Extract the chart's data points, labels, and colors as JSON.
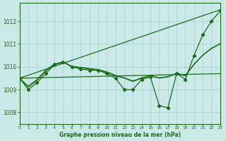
{
  "title": "Graphe pression niveau de la mer (hPa)",
  "background_color": "#cce9e9",
  "grid_color": "#aad4d4",
  "line_color": "#1a6b1a",
  "xlim": [
    0,
    23
  ],
  "ylim": [
    1007.5,
    1012.8
  ],
  "yticks": [
    1008,
    1009,
    1010,
    1011,
    1012
  ],
  "xticks": [
    0,
    1,
    2,
    3,
    4,
    5,
    6,
    7,
    8,
    9,
    10,
    11,
    12,
    13,
    14,
    15,
    16,
    17,
    18,
    19,
    20,
    21,
    22,
    23
  ],
  "upper_diag": {
    "x": [
      0,
      23
    ],
    "y": [
      1009.5,
      1012.5
    ]
  },
  "lower_diag": {
    "x": [
      0,
      23
    ],
    "y": [
      1009.5,
      1009.7
    ]
  },
  "smooth1": [
    1009.5,
    1009.1,
    1009.4,
    1009.8,
    1010.1,
    1010.2,
    1010.0,
    1009.95,
    1009.9,
    1009.85,
    1009.75,
    1009.6,
    1009.5,
    1009.35,
    1009.5,
    1009.6,
    1009.5,
    1009.55,
    1009.7,
    1009.6,
    1010.1,
    1010.5,
    1010.8,
    1011.0
  ],
  "smooth2": [
    1009.5,
    1009.15,
    1009.45,
    1009.85,
    1010.12,
    1010.22,
    1010.02,
    1009.98,
    1009.93,
    1009.88,
    1009.78,
    1009.63,
    1009.52,
    1009.38,
    1009.52,
    1009.62,
    1009.52,
    1009.57,
    1009.72,
    1009.62,
    1010.12,
    1010.52,
    1010.82,
    1011.02
  ],
  "main_markers": {
    "x": [
      0,
      1,
      2,
      3,
      4,
      5,
      6,
      7,
      8,
      9,
      10,
      11,
      12,
      13,
      14,
      15,
      16,
      17,
      18,
      19,
      20,
      21,
      22,
      23
    ],
    "y": [
      1009.5,
      1009.0,
      1009.3,
      1009.7,
      1010.1,
      1010.2,
      1010.0,
      1009.9,
      1009.85,
      1009.85,
      1009.7,
      1009.5,
      1009.0,
      1009.0,
      1009.45,
      1009.55,
      1008.3,
      1008.2,
      1009.7,
      1009.45,
      1010.5,
      1011.4,
      1012.0,
      1012.45
    ]
  }
}
